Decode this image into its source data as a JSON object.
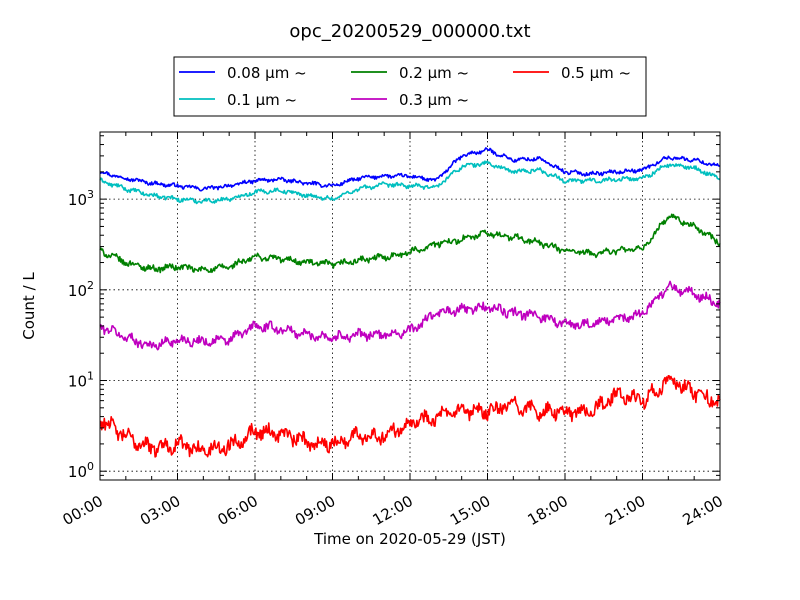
{
  "chart_data": {
    "type": "line",
    "title": "opc_20200529_000000.txt",
    "xlabel": "Time on 2020-05-29 (JST)",
    "ylabel": "Count / L",
    "yscale": "log",
    "ylim": [
      0.8,
      5500
    ],
    "xlim": [
      "2020-05-29 00:00",
      "2020-05-30 00:00"
    ],
    "grid": true,
    "legend_position": "top-center, above plot",
    "xticks": [
      "00:00",
      "03:00",
      "06:00",
      "09:00",
      "12:00",
      "15:00",
      "18:00",
      "21:00",
      "24:00"
    ],
    "yticks": [
      {
        "base": "10",
        "exp": "0"
      },
      {
        "base": "10",
        "exp": "1"
      },
      {
        "base": "10",
        "exp": "2"
      },
      {
        "base": "10",
        "exp": "3"
      }
    ],
    "x": [
      "00:00",
      "01:00",
      "02:00",
      "03:00",
      "04:00",
      "05:00",
      "06:00",
      "07:00",
      "08:00",
      "09:00",
      "10:00",
      "11:00",
      "12:00",
      "13:00",
      "14:00",
      "15:00",
      "16:00",
      "17:00",
      "18:00",
      "19:00",
      "20:00",
      "21:00",
      "22:00",
      "23:00",
      "24:00"
    ],
    "series": [
      {
        "name": "0.08 μm ~",
        "color": "#0000ff",
        "values": [
          2000,
          1700,
          1500,
          1400,
          1300,
          1400,
          1600,
          1650,
          1500,
          1400,
          1700,
          1800,
          1800,
          1600,
          3000,
          3500,
          2700,
          2800,
          2000,
          1900,
          2000,
          2100,
          2900,
          2700,
          2300
        ]
      },
      {
        "name": "0.1 μm ~",
        "color": "#00bfbf",
        "values": [
          1600,
          1300,
          1100,
          1000,
          950,
          1000,
          1200,
          1250,
          1100,
          1000,
          1300,
          1450,
          1400,
          1350,
          2300,
          2500,
          2000,
          2100,
          1600,
          1600,
          1650,
          1700,
          2400,
          2200,
          1700
        ]
      },
      {
        "name": "0.2 μm ~",
        "color": "#008000",
        "values": [
          270,
          200,
          170,
          180,
          165,
          180,
          230,
          220,
          200,
          190,
          210,
          230,
          260,
          320,
          360,
          420,
          380,
          330,
          270,
          250,
          270,
          280,
          650,
          500,
          330
        ]
      },
      {
        "name": "0.3 μm ~",
        "color": "#bf00bf",
        "values": [
          40,
          30,
          24,
          28,
          27,
          28,
          40,
          37,
          32,
          30,
          32,
          32,
          35,
          55,
          60,
          65,
          55,
          52,
          42,
          42,
          47,
          55,
          110,
          90,
          70
        ]
      },
      {
        "name": "0.5 μm ~",
        "color": "#ff0000",
        "values": [
          3.8,
          2.4,
          1.8,
          2.0,
          1.7,
          1.9,
          2.8,
          2.6,
          2.1,
          2.0,
          2.5,
          2.5,
          3.5,
          4.0,
          4.5,
          4.5,
          5.5,
          4.5,
          4.5,
          4.5,
          7.0,
          6.0,
          10.0,
          7.5,
          5.5
        ]
      }
    ]
  }
}
